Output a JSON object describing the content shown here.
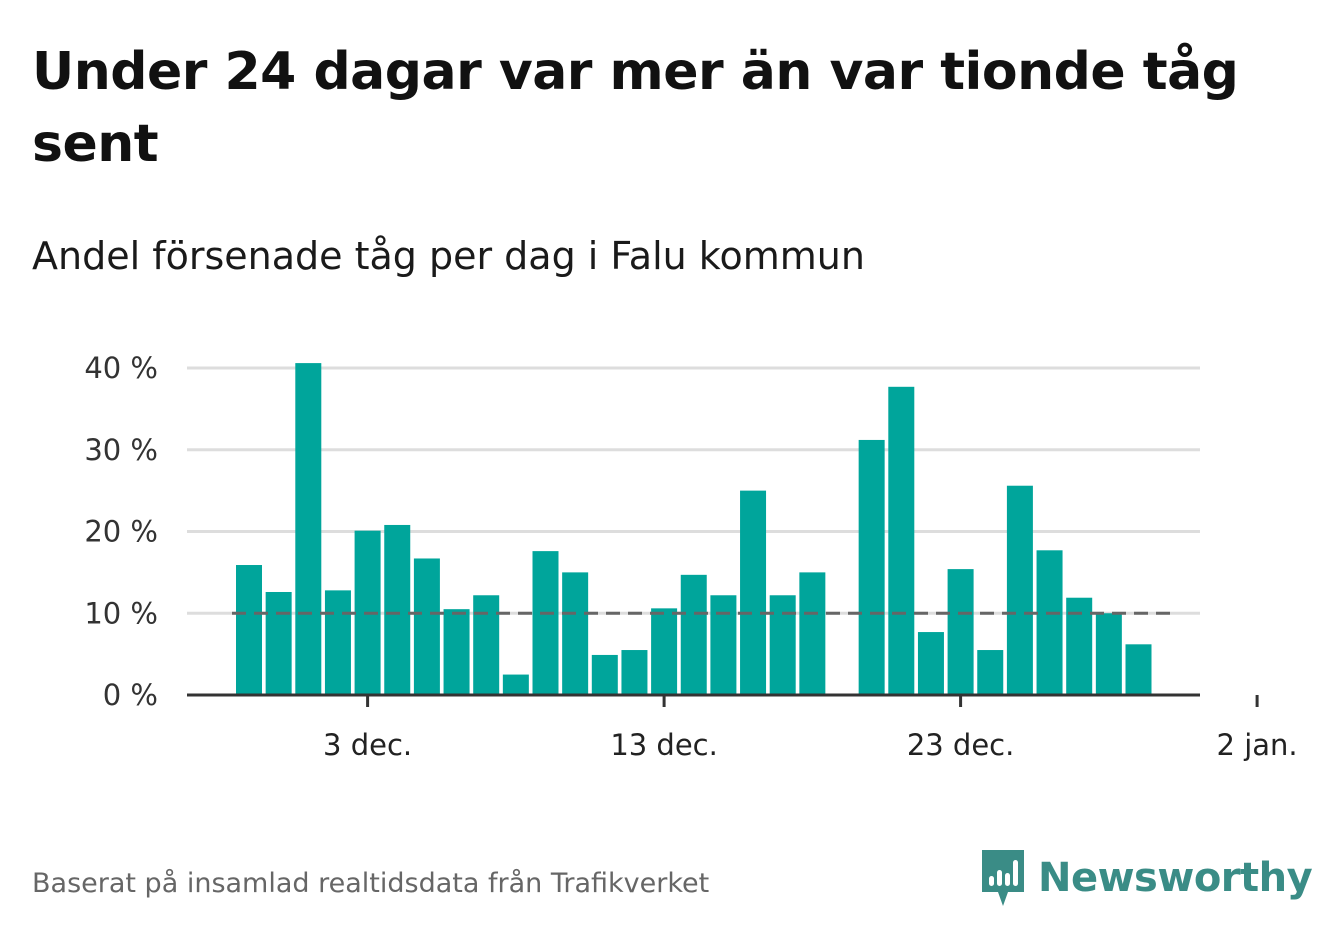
{
  "title": "Under 24 dagar var mer än var tionde tåg sent",
  "subtitle": "Andel försenade tåg per dag i Falu kommun",
  "source": "Baserat på insamlad realtidsdata från Trafikverket",
  "brand": {
    "name": "Newsworthy",
    "icon": "newsworthy-logo-icon",
    "color": "#3a8c86"
  },
  "colors": {
    "bar": "#00a59b",
    "reference_line": "#666666",
    "grid": "#dddddd",
    "axis": "#333333"
  },
  "chart_data": {
    "type": "bar",
    "title": "Under 24 dagar var mer än var tionde tåg sent",
    "subtitle": "Andel försenade tåg per dag i Falu kommun",
    "x": [
      "2023-11-29",
      "2023-11-30",
      "2023-12-01",
      "2023-12-02",
      "2023-12-03",
      "2023-12-04",
      "2023-12-05",
      "2023-12-06",
      "2023-12-07",
      "2023-12-08",
      "2023-12-09",
      "2023-12-10",
      "2023-12-11",
      "2023-12-12",
      "2023-12-13",
      "2023-12-14",
      "2023-12-15",
      "2023-12-16",
      "2023-12-17",
      "2023-12-18",
      "2023-12-19",
      "2023-12-20",
      "2023-12-21",
      "2023-12-22",
      "2023-12-23",
      "2023-12-24",
      "2023-12-25",
      "2023-12-26",
      "2023-12-27",
      "2023-12-28",
      "2023-12-29",
      "2023-12-30",
      "2023-12-31"
    ],
    "values": [
      15.9,
      12.6,
      40.6,
      12.8,
      20.1,
      20.8,
      16.7,
      10.5,
      12.2,
      2.5,
      17.6,
      15.0,
      4.9,
      5.5,
      10.6,
      14.7,
      12.2,
      25.0,
      12.2,
      15.0,
      null,
      31.2,
      37.7,
      7.7,
      15.4,
      5.5,
      25.6,
      17.7,
      11.9,
      10.0,
      6.2,
      null,
      null
    ],
    "reference_line": 10,
    "ylim": [
      0,
      40
    ],
    "yticks": [
      0,
      10,
      20,
      30,
      40
    ],
    "ytick_labels": [
      "0 %",
      "10 %",
      "20 %",
      "30 %",
      "40 %"
    ],
    "xticks": [
      "2023-12-03",
      "2023-12-13",
      "2023-12-23",
      "2024-01-02"
    ],
    "xtick_labels": [
      "3 dec.",
      "13 dec.",
      "23 dec.",
      "2 jan."
    ],
    "grid": true,
    "legend": false
  }
}
